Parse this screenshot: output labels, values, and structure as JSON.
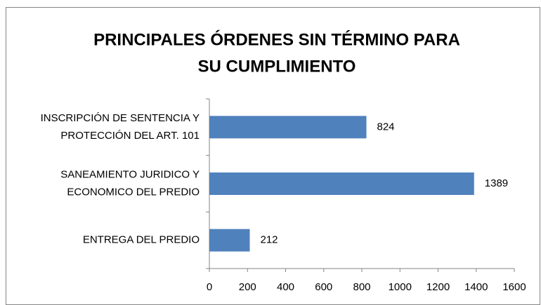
{
  "chart_data": {
    "type": "bar",
    "orientation": "horizontal",
    "title": [
      "PRINCIPALES ÓRDENES SIN TÉRMINO PARA",
      "SU CUMPLIMIENTO"
    ],
    "categories": [
      [
        "INSCRIPCIÓN DE SENTENCIA Y",
        "PROTECCIÓN DEL ART. 101"
      ],
      [
        "SANEAMIENTO JURIDICO Y",
        "ECONOMICO DEL PREDIO"
      ],
      [
        "ENTREGA DEL PREDIO"
      ]
    ],
    "values": [
      824,
      1389,
      212
    ],
    "color": "#4f81bd",
    "xlim": [
      0,
      1600
    ],
    "xticks": [
      0,
      200,
      400,
      600,
      800,
      1000,
      1200,
      1400,
      1600
    ],
    "grid": false
  }
}
